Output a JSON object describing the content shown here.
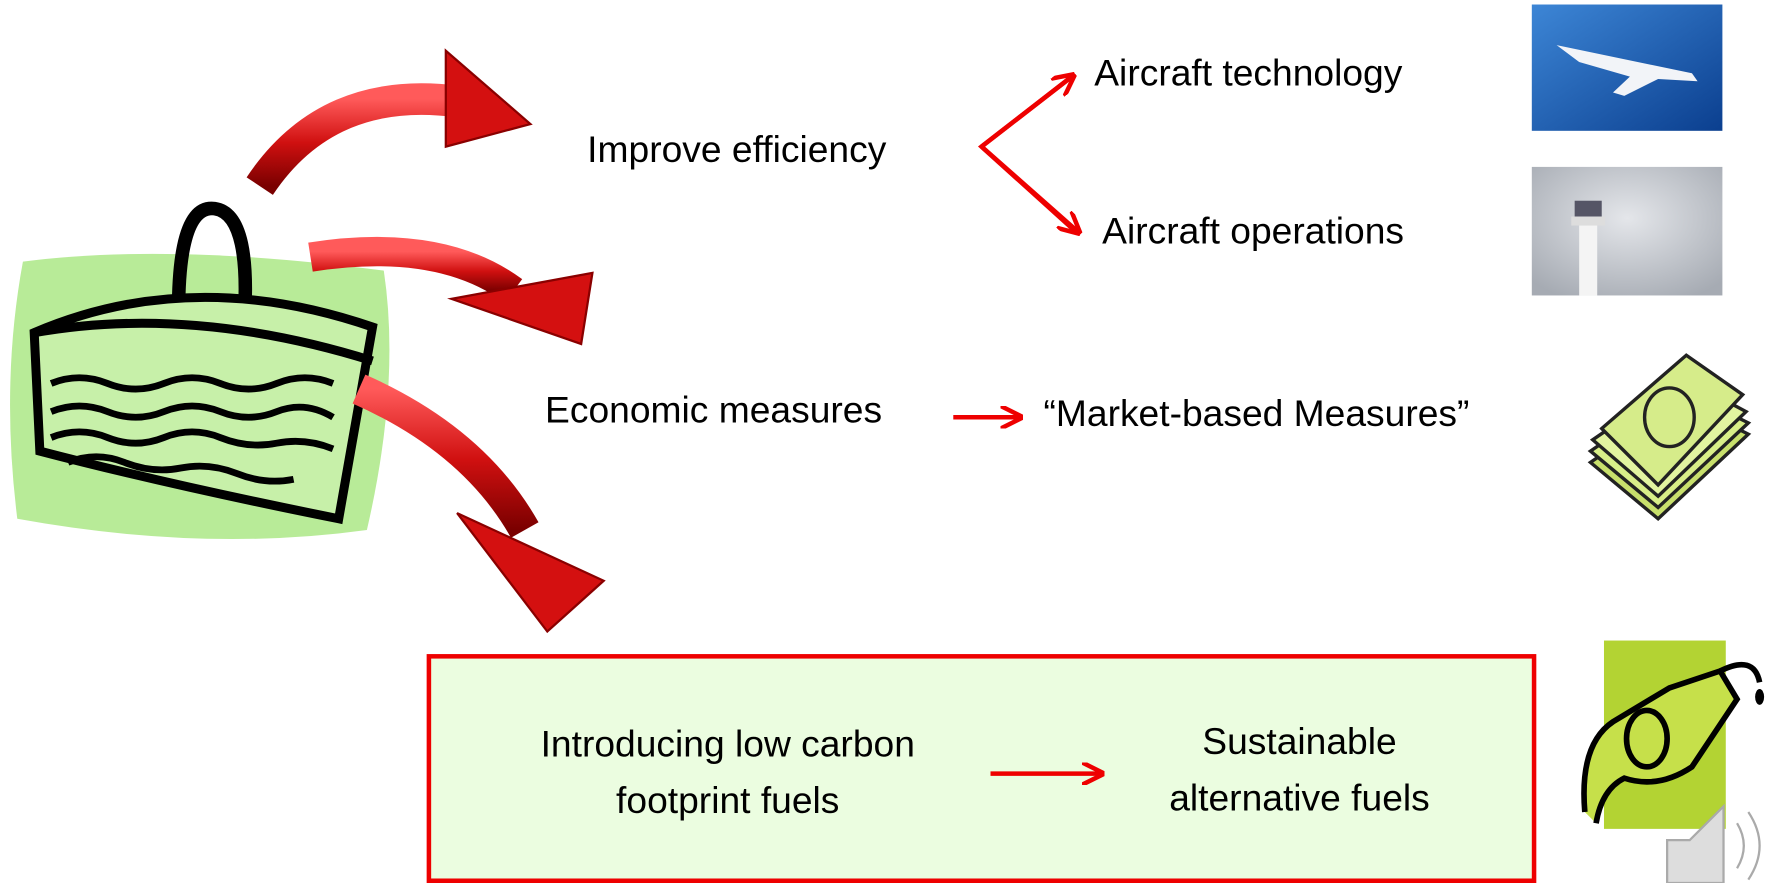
{
  "nodes": [
    {
      "label": "Improve efficiency"
    },
    {
      "label": "Aircraft technology"
    },
    {
      "label": "Aircraft operations"
    },
    {
      "label": "Economic measures"
    },
    {
      "label": "“Market-based Measures”"
    }
  ],
  "box": {
    "from": [
      "Introducing low carbon",
      "footprint fuels"
    ],
    "to": [
      "Sustainable",
      "alternative fuels"
    ]
  }
}
